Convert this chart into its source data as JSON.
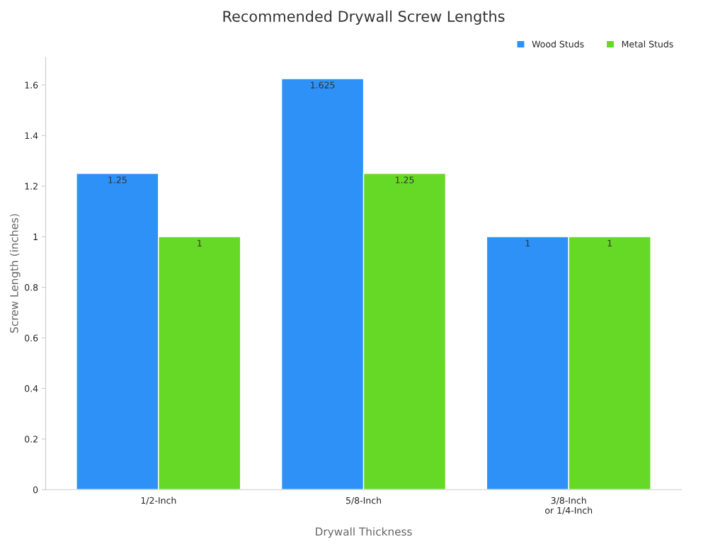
{
  "chart_data": {
    "type": "bar",
    "title": "Recommended Drywall Screw Lengths",
    "xlabel": "Drywall Thickness",
    "ylabel": "Screw Length (inches)",
    "categories": [
      "1/2-Inch",
      "5/8-Inch",
      "3/8-Inch\nor 1/4-Inch"
    ],
    "series": [
      {
        "name": "Wood Studs",
        "color": "#2e91f8",
        "values": [
          1.25,
          1.625,
          1
        ]
      },
      {
        "name": "Metal Studs",
        "color": "#66d926",
        "values": [
          1,
          1.25,
          1
        ]
      }
    ],
    "ylim": [
      0,
      1.71
    ],
    "yticks": [
      0,
      0.2,
      0.4,
      0.6,
      0.8,
      1,
      1.2,
      1.4,
      1.6
    ],
    "grid": false,
    "legend": "top right",
    "data_labels": true
  }
}
